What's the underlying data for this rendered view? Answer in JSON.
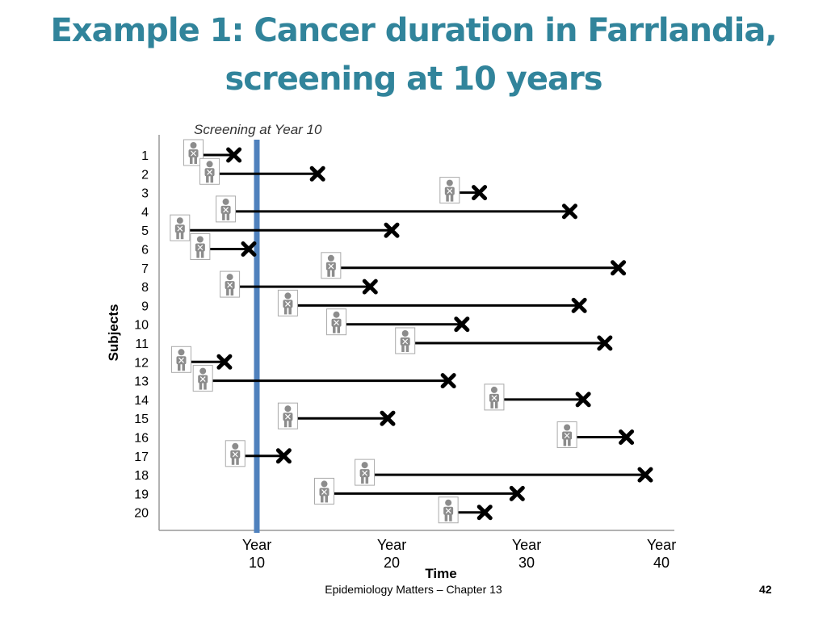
{
  "slide": {
    "title_line1": "Example 1: Cancer duration in Farrlandia,",
    "title_line2": "screening at 10 years",
    "footer": "Epidemiology Matters – Chapter 13",
    "page_number": "42"
  },
  "chart_data": {
    "type": "timeline",
    "annotation": "Screening at Year 10",
    "screening_year": 10,
    "ylabel": "Subjects",
    "xlabel": "Time",
    "xlim": [
      4,
      42
    ],
    "x_ticks": [
      {
        "line1": "Year",
        "line2": "10",
        "value": 10
      },
      {
        "line1": "Year",
        "line2": "20",
        "value": 20
      },
      {
        "line1": "Year",
        "line2": "30",
        "value": 30
      },
      {
        "line1": "Year",
        "line2": "40",
        "value": 40
      }
    ],
    "subjects": [
      {
        "label": "1",
        "onset": 5.3,
        "end": 8.3
      },
      {
        "label": "2",
        "onset": 6.5,
        "end": 14.5
      },
      {
        "label": "3",
        "onset": 24.3,
        "end": 26.5
      },
      {
        "label": "4",
        "onset": 7.7,
        "end": 33.2
      },
      {
        "label": "5",
        "onset": 4.3,
        "end": 20.0
      },
      {
        "label": "6",
        "onset": 5.8,
        "end": 9.4
      },
      {
        "label": "7",
        "onset": 15.5,
        "end": 36.8
      },
      {
        "label": "8",
        "onset": 8.0,
        "end": 18.4
      },
      {
        "label": "9",
        "onset": 12.3,
        "end": 33.9
      },
      {
        "label": "10",
        "onset": 15.9,
        "end": 25.2
      },
      {
        "label": "11",
        "onset": 21.0,
        "end": 35.8
      },
      {
        "label": "12",
        "onset": 4.4,
        "end": 7.6
      },
      {
        "label": "13",
        "onset": 6.0,
        "end": 24.2
      },
      {
        "label": "14",
        "onset": 27.6,
        "end": 34.2
      },
      {
        "label": "15",
        "onset": 12.3,
        "end": 19.7
      },
      {
        "label": "16",
        "onset": 33.0,
        "end": 37.4
      },
      {
        "label": "17",
        "onset": 8.4,
        "end": 12.0
      },
      {
        "label": "18",
        "onset": 18.0,
        "end": 38.8
      },
      {
        "label": "19",
        "onset": 15.0,
        "end": 29.3
      },
      {
        "label": "20",
        "onset": 24.2,
        "end": 26.9
      }
    ],
    "colors": {
      "screening_line": "#4f81bd",
      "title": "#31849b",
      "bar": "#000000",
      "person_icon": "#8c8c8c"
    },
    "icons": {
      "onset_marker": "person-icon",
      "end_marker": "x-mark-icon"
    }
  }
}
